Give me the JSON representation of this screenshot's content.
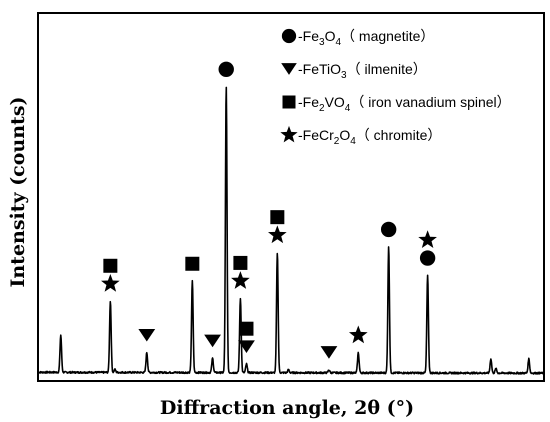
{
  "chart_data": {
    "type": "line",
    "title": "",
    "xlabel": "Diffraction angle, 2θ (°)",
    "ylabel": "Intensity (counts)",
    "x_ticks_shown": false,
    "y_ticks_shown": false,
    "grid": false,
    "legend_position": "top-right",
    "legend": [
      {
        "symbol": "circle",
        "prefix": "-Fe",
        "sub1": "3",
        "mid": "O",
        "sub2": "4",
        "suffix": "（ magnetite）"
      },
      {
        "symbol": "triangle",
        "prefix": "-FeTiO",
        "sub1": "3",
        "mid": "",
        "sub2": "",
        "suffix": "（ ilmenite）"
      },
      {
        "symbol": "square",
        "prefix": "-Fe",
        "sub1": "2",
        "mid": "VO",
        "sub2": "4",
        "suffix": "（ iron vanadium spinel）"
      },
      {
        "symbol": "star",
        "prefix": "-FeCr",
        "sub1": "2",
        "mid": "O",
        "sub2": "4",
        "suffix": "（ chromite）"
      }
    ],
    "baseline": 0.02,
    "peaks": [
      {
        "pos": 0.045,
        "h": 0.13,
        "markers": []
      },
      {
        "pos": 0.143,
        "h": 0.25,
        "markers": [
          "star",
          "square"
        ]
      },
      {
        "pos": 0.152,
        "h": 0.01,
        "markers": []
      },
      {
        "pos": 0.215,
        "h": 0.07,
        "markers": [
          "triangle"
        ]
      },
      {
        "pos": 0.305,
        "h": 0.32,
        "markers": [
          "square"
        ]
      },
      {
        "pos": 0.345,
        "h": 0.05,
        "markers": [
          "triangle"
        ]
      },
      {
        "pos": 0.372,
        "h": 1.0,
        "markers": [
          "circle"
        ]
      },
      {
        "pos": 0.4,
        "h": 0.26,
        "markers": [
          "star",
          "square"
        ]
      },
      {
        "pos": 0.412,
        "h": 0.03,
        "markers": [
          "triangle",
          "square"
        ]
      },
      {
        "pos": 0.473,
        "h": 0.42,
        "markers": [
          "star",
          "square"
        ]
      },
      {
        "pos": 0.495,
        "h": 0.01,
        "markers": []
      },
      {
        "pos": 0.575,
        "h": 0.01,
        "markers": [
          "triangle"
        ]
      },
      {
        "pos": 0.633,
        "h": 0.07,
        "markers": [
          "star"
        ]
      },
      {
        "pos": 0.693,
        "h": 0.44,
        "markers": [
          "circle"
        ]
      },
      {
        "pos": 0.77,
        "h": 0.34,
        "markers": [
          "circle",
          "star"
        ]
      },
      {
        "pos": 0.895,
        "h": 0.05,
        "markers": []
      },
      {
        "pos": 0.905,
        "h": 0.015,
        "markers": []
      },
      {
        "pos": 0.97,
        "h": 0.05,
        "markers": []
      }
    ]
  }
}
